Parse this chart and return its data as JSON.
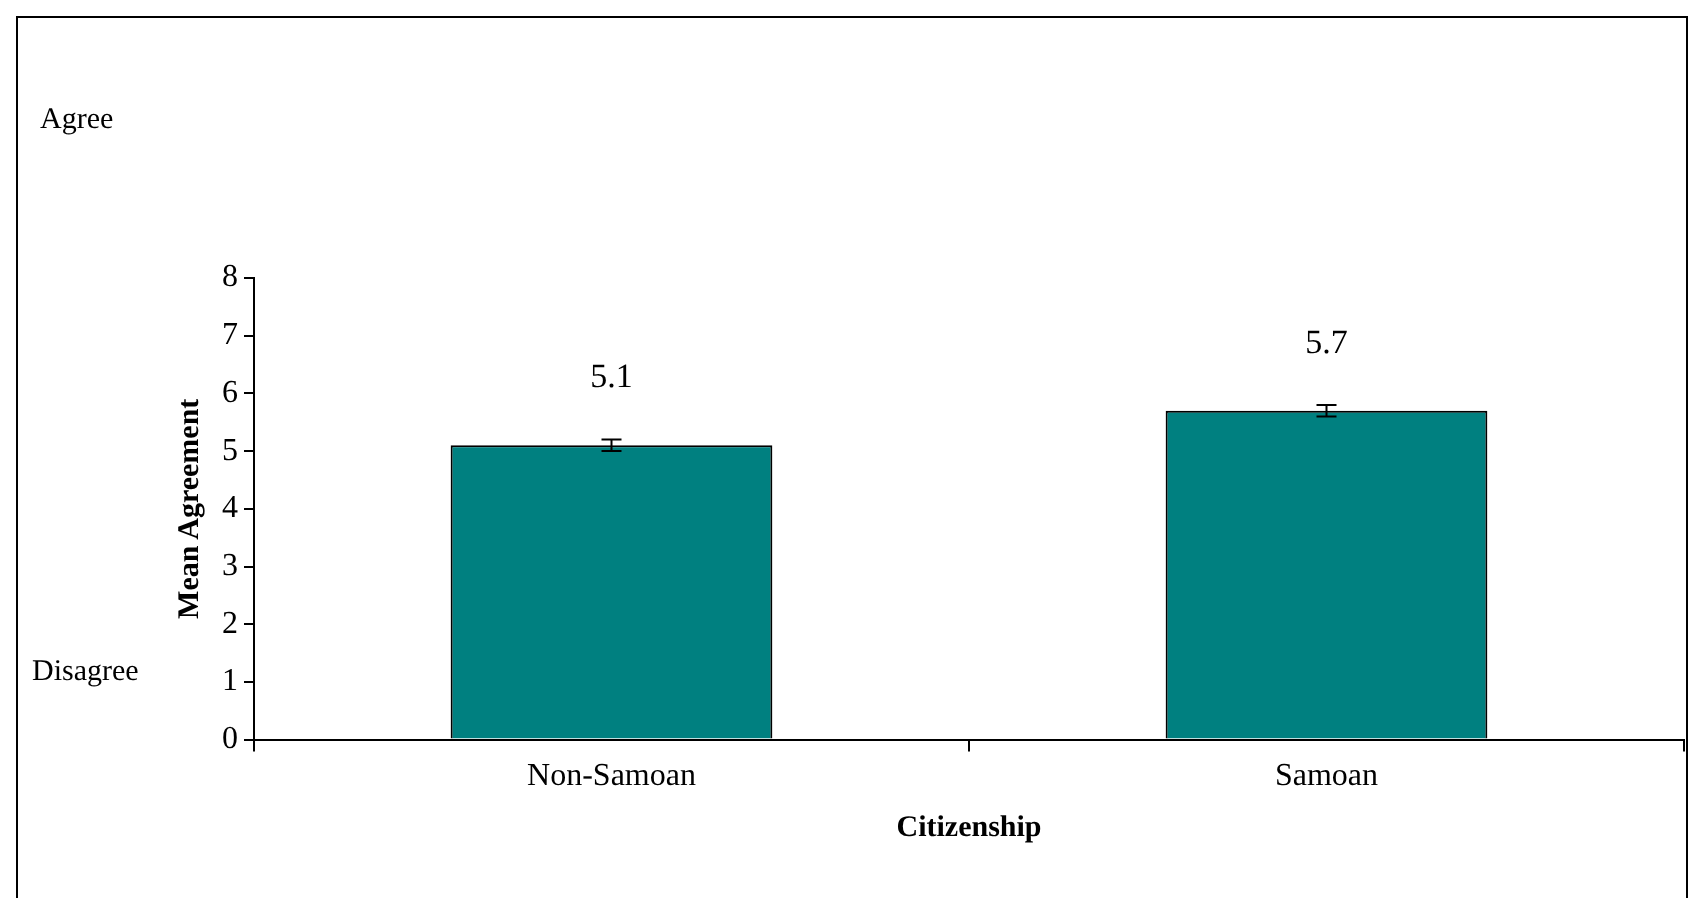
{
  "chart_data": {
    "type": "bar",
    "xlabel": "Citizenship",
    "ylabel": "Mean Agreement",
    "categories": [
      "Non-Samoan",
      "Samoan"
    ],
    "values": [
      5.1,
      5.7
    ],
    "errors": [
      0.1,
      0.1
    ],
    "color": "#008080",
    "ylim": [
      0,
      8
    ],
    "yticks": [
      0,
      1,
      2,
      3,
      4,
      5,
      6,
      7,
      8
    ],
    "grid": false,
    "legend": false,
    "data_labels": true,
    "annotations": [
      "Agree",
      "Disagree"
    ]
  }
}
